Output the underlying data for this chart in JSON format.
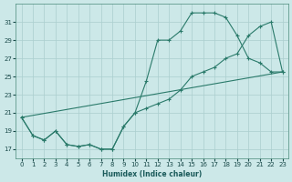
{
  "xlabel": "Humidex (Indice chaleur)",
  "bg_color": "#cce8e8",
  "grid_color": "#aacece",
  "line_color": "#2a7a6a",
  "xlim": [
    -0.5,
    23.5
  ],
  "ylim": [
    16.0,
    33.0
  ],
  "xticks": [
    0,
    1,
    2,
    3,
    4,
    5,
    6,
    7,
    8,
    9,
    10,
    11,
    12,
    13,
    14,
    15,
    16,
    17,
    18,
    19,
    20,
    21,
    22,
    23
  ],
  "yticks": [
    17,
    19,
    21,
    23,
    25,
    27,
    29,
    31
  ],
  "line1_x": [
    0,
    1,
    2,
    3,
    4,
    5,
    6,
    7,
    8,
    9,
    10,
    11,
    12,
    13,
    14,
    15,
    16,
    17,
    18,
    19,
    20,
    21,
    22,
    23
  ],
  "line1_y": [
    20.5,
    18.5,
    18.0,
    19.0,
    17.5,
    17.3,
    17.5,
    17.0,
    17.0,
    19.5,
    21.0,
    24.5,
    29.0,
    29.0,
    30.0,
    32.0,
    32.0,
    32.0,
    31.5,
    29.5,
    27.0,
    26.5,
    25.5,
    25.5
  ],
  "line2_x": [
    0,
    1,
    2,
    3,
    4,
    5,
    6,
    7,
    8,
    9,
    10,
    11,
    12,
    13,
    14,
    15,
    16,
    17,
    18,
    19,
    20,
    21,
    22,
    23
  ],
  "line2_y": [
    20.5,
    18.5,
    18.0,
    19.0,
    17.5,
    17.3,
    17.5,
    17.0,
    17.0,
    19.5,
    21.0,
    21.5,
    22.0,
    22.5,
    23.5,
    25.0,
    25.5,
    26.0,
    27.0,
    27.5,
    29.5,
    30.5,
    31.0,
    25.5
  ],
  "line3_x": [
    0,
    23
  ],
  "line3_y": [
    20.5,
    25.5
  ]
}
